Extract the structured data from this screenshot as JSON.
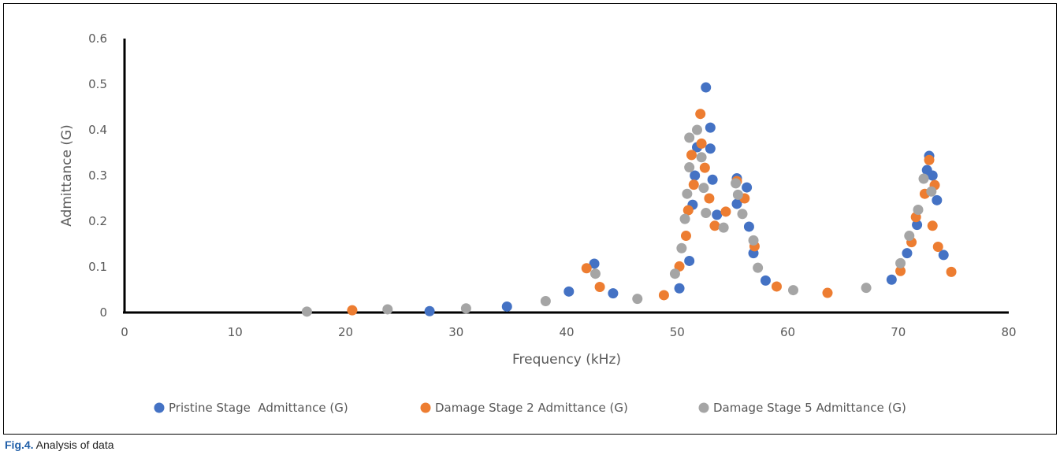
{
  "caption": {
    "label": "Fig.4.",
    "text": " Analysis of data"
  },
  "chart_data": {
    "type": "scatter",
    "xlabel": "Frequency (kHz)",
    "ylabel": "Admittance (G)",
    "xlim": [
      0,
      80
    ],
    "ylim": [
      0,
      0.6
    ],
    "x_ticks": [
      0,
      10,
      20,
      30,
      40,
      50,
      60,
      70,
      80
    ],
    "y_ticks": [
      0,
      0.1,
      0.2,
      0.3,
      0.4,
      0.5,
      0.6
    ],
    "grid": false,
    "legend_position": "bottom",
    "series": [
      {
        "name": "Pristine Stage  Admittance (G)",
        "color": "#4472c4",
        "points": [
          [
            27.6,
            0.003
          ],
          [
            34.6,
            0.013
          ],
          [
            40.2,
            0.046
          ],
          [
            42.5,
            0.107
          ],
          [
            44.2,
            0.042
          ],
          [
            50.2,
            0.053
          ],
          [
            51.1,
            0.113
          ],
          [
            51.4,
            0.236
          ],
          [
            51.6,
            0.3
          ],
          [
            51.8,
            0.362
          ],
          [
            52.6,
            0.493
          ],
          [
            53.0,
            0.405
          ],
          [
            53.0,
            0.359
          ],
          [
            53.2,
            0.291
          ],
          [
            53.6,
            0.214
          ],
          [
            55.4,
            0.294
          ],
          [
            55.4,
            0.238
          ],
          [
            56.3,
            0.274
          ],
          [
            56.5,
            0.188
          ],
          [
            56.9,
            0.13
          ],
          [
            58.0,
            0.07
          ],
          [
            69.4,
            0.072
          ],
          [
            70.8,
            0.13
          ],
          [
            71.7,
            0.192
          ],
          [
            72.6,
            0.312
          ],
          [
            72.8,
            0.343
          ],
          [
            73.1,
            0.3
          ],
          [
            73.5,
            0.246
          ],
          [
            74.1,
            0.126
          ]
        ]
      },
      {
        "name": "Damage Stage 2 Admittance (G)",
        "color": "#ed7d31",
        "points": [
          [
            20.6,
            0.005
          ],
          [
            41.8,
            0.097
          ],
          [
            43.0,
            0.056
          ],
          [
            48.8,
            0.038
          ],
          [
            50.2,
            0.101
          ],
          [
            50.8,
            0.168
          ],
          [
            51.0,
            0.224
          ],
          [
            51.3,
            0.345
          ],
          [
            51.5,
            0.28
          ],
          [
            52.1,
            0.435
          ],
          [
            52.2,
            0.37
          ],
          [
            52.5,
            0.317
          ],
          [
            52.9,
            0.25
          ],
          [
            53.4,
            0.19
          ],
          [
            54.4,
            0.221
          ],
          [
            55.4,
            0.288
          ],
          [
            56.1,
            0.25
          ],
          [
            57.0,
            0.145
          ],
          [
            59.0,
            0.057
          ],
          [
            63.6,
            0.043
          ],
          [
            70.2,
            0.091
          ],
          [
            71.2,
            0.154
          ],
          [
            71.6,
            0.209
          ],
          [
            72.4,
            0.26
          ],
          [
            72.8,
            0.334
          ],
          [
            73.1,
            0.19
          ],
          [
            73.3,
            0.279
          ],
          [
            73.6,
            0.144
          ],
          [
            74.8,
            0.089
          ]
        ]
      },
      {
        "name": "Damage Stage 5 Admittance (G)",
        "color": "#a5a5a5",
        "points": [
          [
            16.5,
            0.002
          ],
          [
            23.8,
            0.007
          ],
          [
            30.9,
            0.009
          ],
          [
            38.1,
            0.025
          ],
          [
            42.6,
            0.085
          ],
          [
            46.4,
            0.03
          ],
          [
            49.8,
            0.085
          ],
          [
            50.4,
            0.141
          ],
          [
            50.7,
            0.205
          ],
          [
            50.9,
            0.26
          ],
          [
            51.1,
            0.318
          ],
          [
            51.1,
            0.383
          ],
          [
            51.8,
            0.4
          ],
          [
            52.2,
            0.34
          ],
          [
            52.4,
            0.273
          ],
          [
            52.6,
            0.218
          ],
          [
            54.2,
            0.186
          ],
          [
            55.3,
            0.283
          ],
          [
            55.5,
            0.258
          ],
          [
            55.9,
            0.216
          ],
          [
            56.9,
            0.158
          ],
          [
            57.3,
            0.098
          ],
          [
            60.5,
            0.049
          ],
          [
            67.1,
            0.054
          ],
          [
            70.2,
            0.108
          ],
          [
            71.0,
            0.168
          ],
          [
            71.8,
            0.225
          ],
          [
            72.3,
            0.293
          ],
          [
            73.0,
            0.265
          ]
        ]
      }
    ]
  }
}
